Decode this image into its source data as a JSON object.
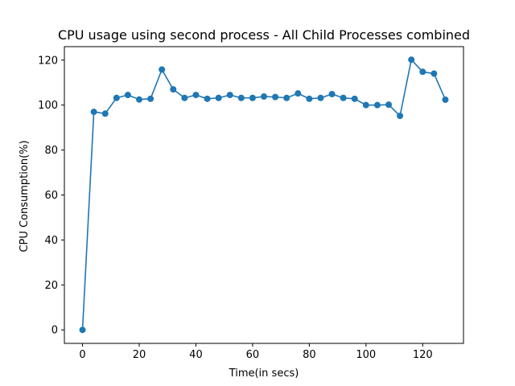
{
  "chart_data": {
    "type": "line",
    "title": "CPU usage using second process - All Child Processes combined",
    "xlabel": "Time(in secs)",
    "ylabel": "CPU Consumption(%)",
    "xlim": [
      -6.4,
      134.4
    ],
    "ylim": [
      -6,
      126
    ],
    "xticks": [
      0,
      20,
      40,
      60,
      80,
      100,
      120
    ],
    "yticks": [
      0,
      20,
      40,
      60,
      80,
      100,
      120
    ],
    "grid": false,
    "legend": "none",
    "marker": "circle",
    "color": "#1f77b4",
    "series": [
      {
        "x": [
          0,
          4,
          8,
          12,
          16,
          20,
          24,
          28,
          32,
          36,
          40,
          44,
          48,
          52,
          56,
          60,
          64,
          68,
          72,
          76,
          80,
          84,
          88,
          92,
          96,
          100,
          104,
          108,
          112,
          116,
          120,
          124,
          128
        ],
        "y": [
          0,
          97.0,
          96.2,
          103.2,
          104.5,
          102.5,
          102.8,
          115.8,
          107.0,
          103.2,
          104.5,
          102.8,
          103.2,
          104.5,
          103.2,
          103.2,
          103.8,
          103.6,
          103.2,
          105.2,
          102.8,
          103.2,
          104.9,
          103.2,
          102.8,
          100.0,
          100.0,
          100.2,
          95.2,
          120.2,
          114.8,
          114.0,
          102.4
        ]
      }
    ]
  }
}
